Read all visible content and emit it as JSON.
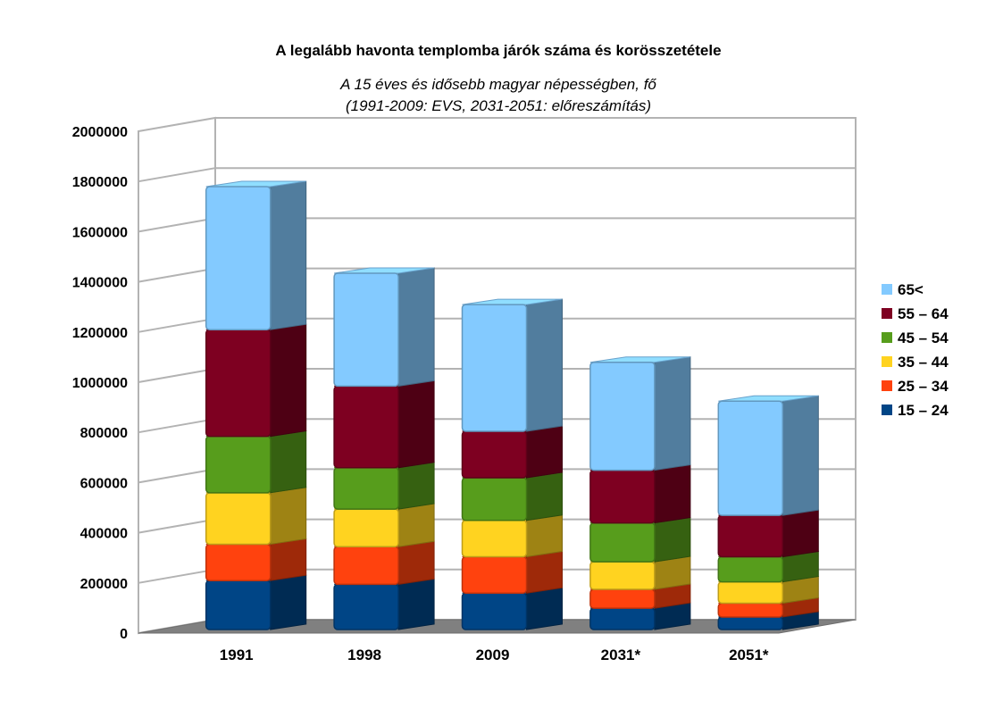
{
  "chart_data": {
    "type": "bar",
    "stacked": true,
    "three_d": true,
    "title": "A legalább havonta templomba járók száma és korösszetétele",
    "subtitle_lines": [
      "A 15 éves és idősebb magyar népességben, fő",
      "(1991-2009: EVS, 2031-2051: előreszámítás)"
    ],
    "categories": [
      "1991",
      "1998",
      "2009",
      "2031*",
      "2051*"
    ],
    "ylim": [
      0,
      2000000
    ],
    "yticks": [
      0,
      200000,
      400000,
      600000,
      800000,
      1000000,
      1200000,
      1400000,
      1600000,
      1800000,
      2000000
    ],
    "ytick_labels": [
      "0",
      "200000",
      "400000",
      "600000",
      "800000",
      "1000000",
      "1200000",
      "1400000",
      "1600000",
      "1800000",
      "2000000"
    ],
    "grid": true,
    "legend_position": "right",
    "series": [
      {
        "name": "15 – 24",
        "color": "#004586",
        "values": [
          195000,
          180000,
          145000,
          85000,
          50000
        ]
      },
      {
        "name": "25 – 34",
        "color": "#ff420e",
        "values": [
          145000,
          150000,
          145000,
          75000,
          55000
        ]
      },
      {
        "name": "35 – 44",
        "color": "#ffd320",
        "values": [
          205000,
          150000,
          145000,
          110000,
          85000
        ]
      },
      {
        "name": "45 – 54",
        "color": "#579d1c",
        "values": [
          225000,
          165000,
          170000,
          155000,
          100000
        ]
      },
      {
        "name": "55 – 64",
        "color": "#7e0021",
        "values": [
          425000,
          325000,
          185000,
          210000,
          165000
        ]
      },
      {
        "name": "65<",
        "color": "#83caff",
        "values": [
          570000,
          450000,
          505000,
          430000,
          455000
        ]
      }
    ]
  }
}
